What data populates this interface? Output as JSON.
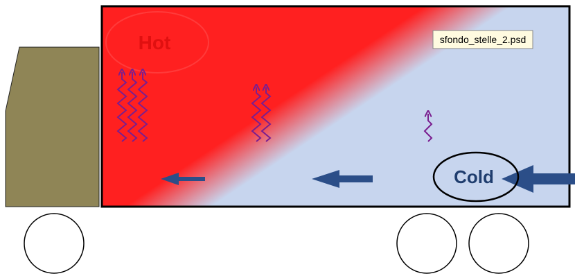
{
  "labels": {
    "hot": "Hot",
    "cold": "Cold"
  },
  "tooltip": "sfondo_stelle_2.psd"
}
